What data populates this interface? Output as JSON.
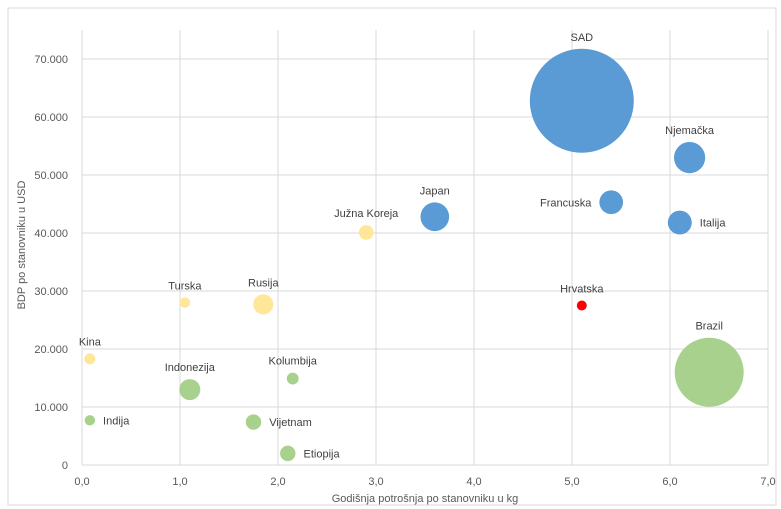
{
  "chart_data": {
    "type": "bubble",
    "xlabel": "Godišnja potrošnja po stanovniku u kg",
    "ylabel": "BDP po stanovniku u USD",
    "xlim": [
      0,
      7
    ],
    "ylim": [
      0,
      75000
    ],
    "x_ticks": [
      "0,0",
      "1,0",
      "2,0",
      "3,0",
      "4,0",
      "5,0",
      "6,0",
      "7,0"
    ],
    "y_ticks": [
      "0",
      "10.000",
      "20.000",
      "30.000",
      "40.000",
      "50.000",
      "60.000",
      "70.000"
    ],
    "grid": true,
    "legend": "none",
    "colors": {
      "blue": "#5b9bd5",
      "yellow": "#ffe699",
      "green": "#a9d18e",
      "red": "#ff0000"
    },
    "points": [
      {
        "label": "SAD",
        "x": 5.1,
        "y": 62800,
        "size": 100,
        "color": "blue"
      },
      {
        "label": "Njemačka",
        "x": 6.2,
        "y": 53000,
        "size": 9.0,
        "color": "blue"
      },
      {
        "label": "Francuska",
        "x": 5.4,
        "y": 45300,
        "size": 5.2,
        "color": "blue"
      },
      {
        "label": "Italija",
        "x": 6.1,
        "y": 41800,
        "size": 5.3,
        "color": "blue"
      },
      {
        "label": "Japan",
        "x": 3.6,
        "y": 42800,
        "size": 7.6,
        "color": "blue"
      },
      {
        "label": "Hrvatska",
        "x": 5.1,
        "y": 27500,
        "size": 0.2,
        "color": "red"
      },
      {
        "label": "Južna Koreja",
        "x": 2.9,
        "y": 40100,
        "size": 2.0,
        "color": "yellow"
      },
      {
        "label": "Turska",
        "x": 1.05,
        "y": 28000,
        "size": 1.0,
        "color": "yellow"
      },
      {
        "label": "Rusija",
        "x": 1.85,
        "y": 27700,
        "size": 3.7,
        "color": "yellow"
      },
      {
        "label": "Kina",
        "x": 0.08,
        "y": 18300,
        "size": 1.1,
        "color": "yellow"
      },
      {
        "label": "Brazil",
        "x": 6.4,
        "y": 16000,
        "size": 44,
        "color": "green"
      },
      {
        "label": "Indonezija",
        "x": 1.1,
        "y": 13000,
        "size": 4.1,
        "color": "green"
      },
      {
        "label": "Kolumbija",
        "x": 2.15,
        "y": 14900,
        "size": 1.3,
        "color": "green"
      },
      {
        "label": "Vijetnam",
        "x": 1.75,
        "y": 7400,
        "size": 2.2,
        "color": "green"
      },
      {
        "label": "Indija",
        "x": 0.08,
        "y": 7700,
        "size": 1.0,
        "color": "green"
      },
      {
        "label": "Etiopija",
        "x": 2.1,
        "y": 2000,
        "size": 2.2,
        "color": "green"
      }
    ]
  }
}
